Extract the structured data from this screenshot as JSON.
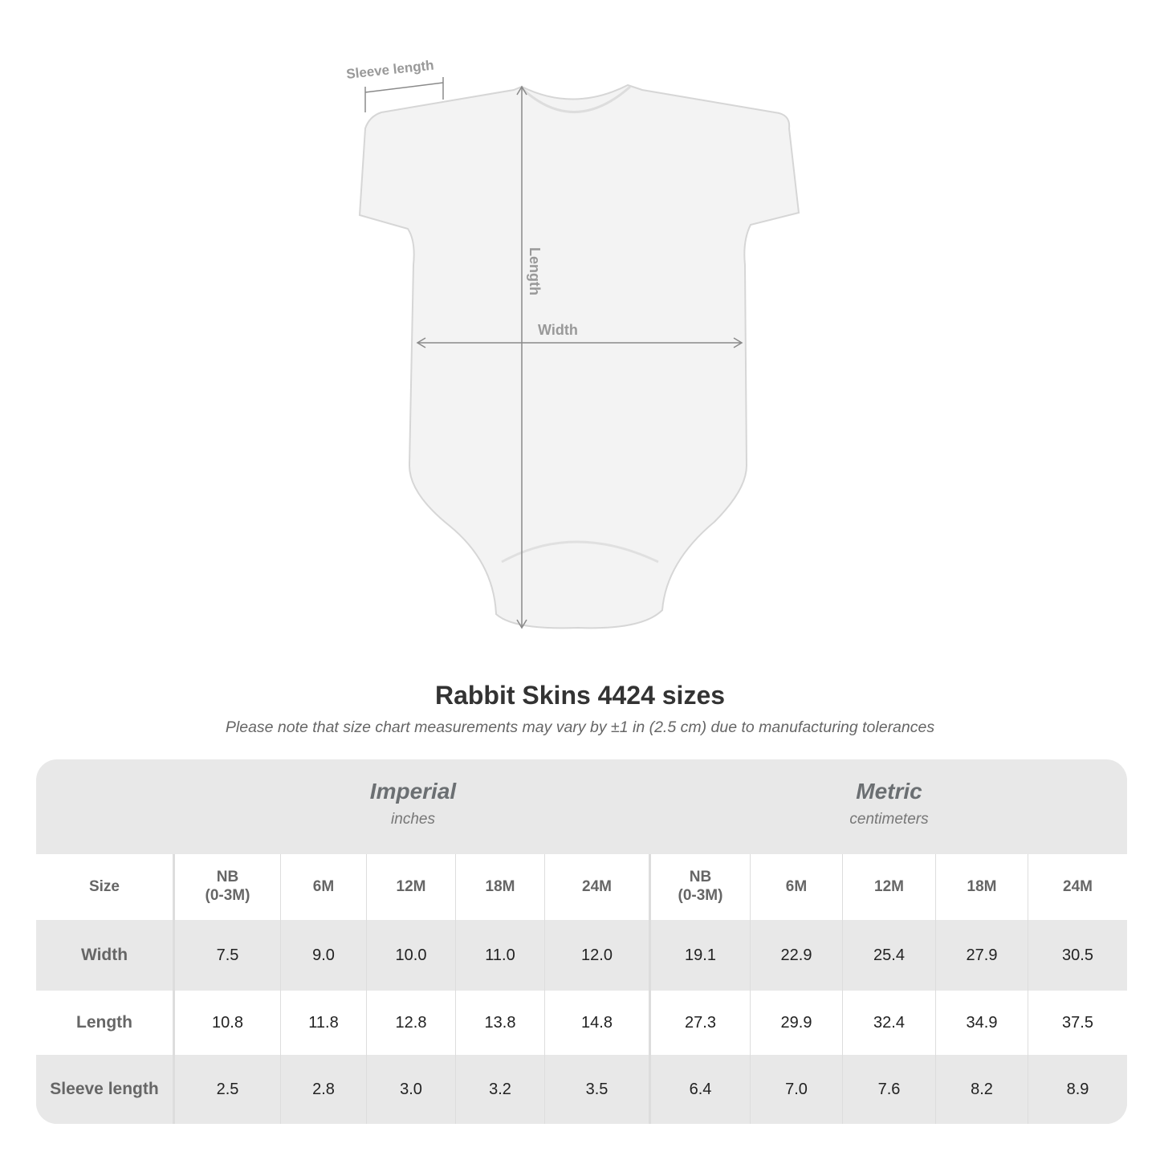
{
  "diagram": {
    "sleeve_label": "Sleeve length",
    "length_label": "Length",
    "width_label": "Width"
  },
  "title": "Rabbit Skins 4424 sizes",
  "subtitle": "Please note that size chart measurements may vary by ±1 in (2.5 cm) due to manufacturing tolerances",
  "table": {
    "imperial": {
      "name": "Imperial",
      "unit": "inches"
    },
    "metric": {
      "name": "Metric",
      "unit": "centimeters"
    },
    "size_label": "Size",
    "sizes": [
      "NB\n(0-3M)",
      "6M",
      "12M",
      "18M",
      "24M"
    ],
    "rows": [
      {
        "label": "Width",
        "imperial": [
          "7.5",
          "9.0",
          "10.0",
          "11.0",
          "12.0"
        ],
        "metric": [
          "19.1",
          "22.9",
          "25.4",
          "27.9",
          "30.5"
        ]
      },
      {
        "label": "Length",
        "imperial": [
          "10.8",
          "11.8",
          "12.8",
          "13.8",
          "14.8"
        ],
        "metric": [
          "27.3",
          "29.9",
          "32.4",
          "34.9",
          "37.5"
        ]
      },
      {
        "label": "Sleeve length",
        "imperial": [
          "2.5",
          "2.8",
          "3.0",
          "3.2",
          "3.5"
        ],
        "metric": [
          "6.4",
          "7.0",
          "7.6",
          "8.2",
          "8.9"
        ]
      }
    ]
  },
  "colors": {
    "header_bg": "#e8e8e8",
    "label_text": "#666666",
    "measure_lines": "#8a8a8a"
  }
}
